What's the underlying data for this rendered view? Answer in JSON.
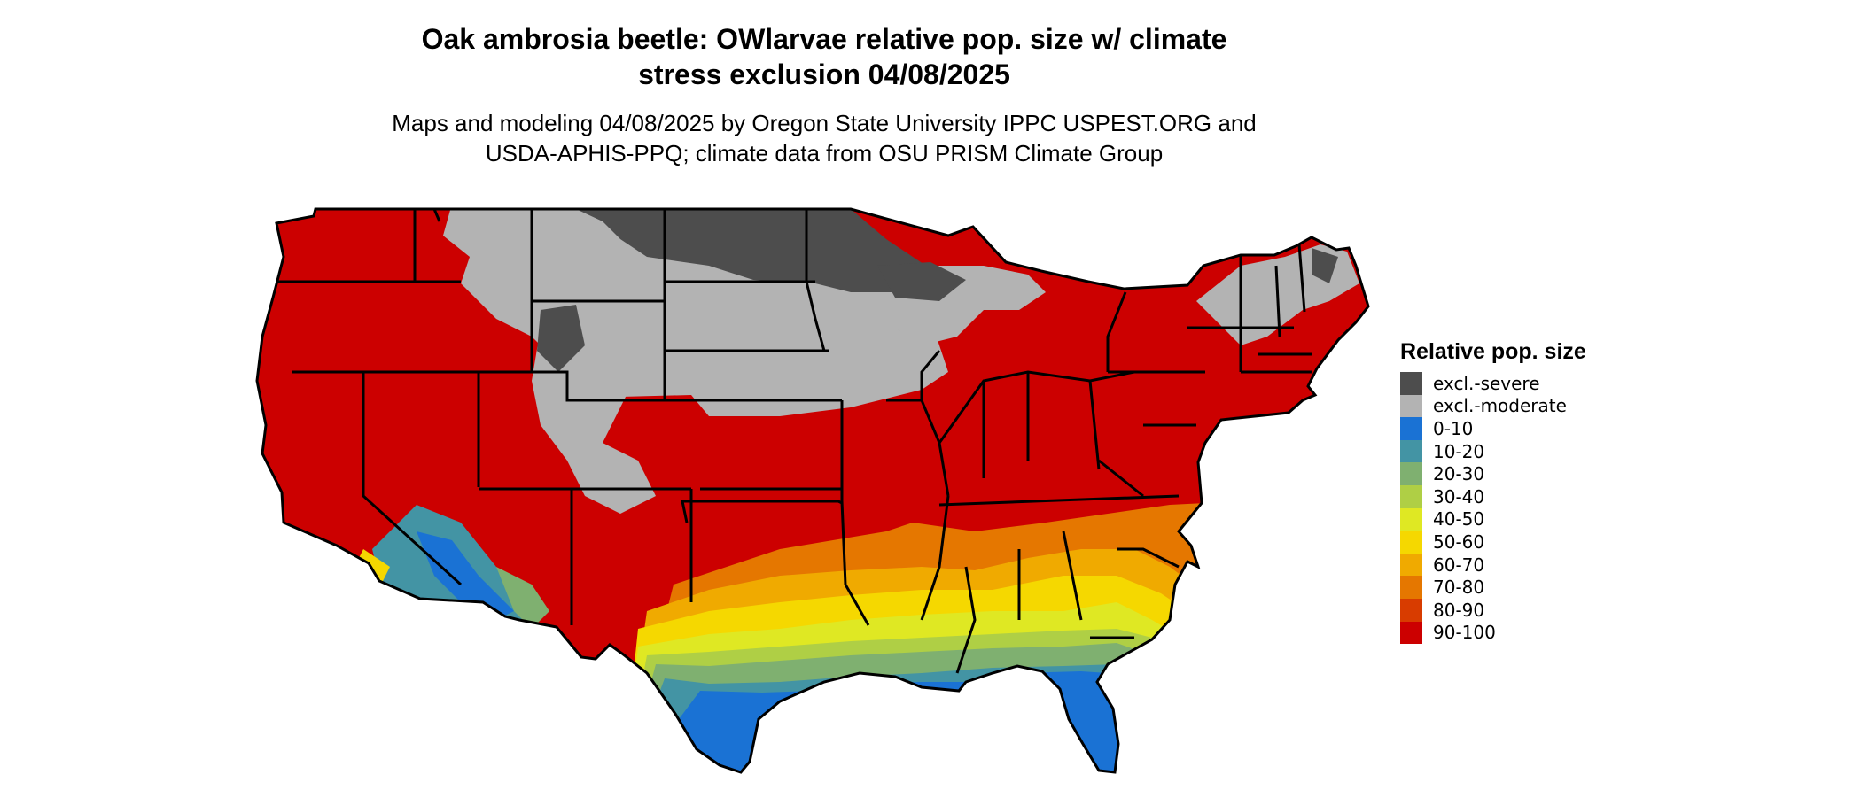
{
  "title_line1": "Oak ambrosia beetle: OWlarvae relative pop. size w/ climate",
  "title_line2": "stress exclusion 04/08/2025",
  "subtitle_line1": "Maps and modeling 04/08/2025 by Oregon State University IPPC USPEST.ORG and",
  "subtitle_line2": "USDA-APHIS-PPQ; climate data from OSU PRISM Climate Group",
  "legend": {
    "title": "Relative pop. size",
    "items": [
      {
        "label": "excl.-severe",
        "color": "#4d4d4d"
      },
      {
        "label": "excl.-moderate",
        "color": "#b3b3b3"
      },
      {
        "label": "0-10",
        "color": "#1a72d4"
      },
      {
        "label": "10-20",
        "color": "#4394a4"
      },
      {
        "label": "20-30",
        "color": "#7fb070"
      },
      {
        "label": "30-40",
        "color": "#afcf45"
      },
      {
        "label": "40-50",
        "color": "#dfe823"
      },
      {
        "label": "50-60",
        "color": "#f5d800"
      },
      {
        "label": "60-70",
        "color": "#f0aa00"
      },
      {
        "label": "70-80",
        "color": "#e57700"
      },
      {
        "label": "80-90",
        "color": "#d83c00"
      },
      {
        "label": "90-100",
        "color": "#cc0000"
      }
    ]
  }
}
